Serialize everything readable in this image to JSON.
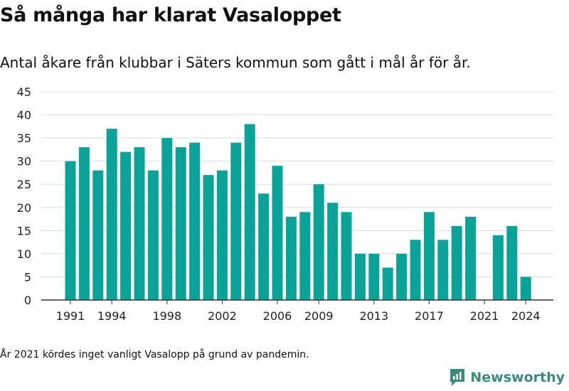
{
  "header": {
    "title": "Så många har klarat Vasaloppet",
    "subtitle": "Antal åkare från klubbar i Säters kommun som gått i mål år för år."
  },
  "footnote": "År 2021 kördes inget vanligt Vasalopp på grund av pandemin.",
  "brand": {
    "name": "Newsworthy",
    "icon": "newsworthy-logo-icon",
    "color": "#3a8a80"
  },
  "colors": {
    "bar": "#0aa39a",
    "grid": "#dddddd",
    "axis": "#333333"
  },
  "chart_data": {
    "type": "bar",
    "categories": [
      1991,
      1992,
      1993,
      1994,
      1995,
      1996,
      1997,
      1998,
      1999,
      2000,
      2001,
      2002,
      2003,
      2004,
      2005,
      2006,
      2007,
      2008,
      2009,
      2010,
      2011,
      2012,
      2013,
      2014,
      2015,
      2016,
      2017,
      2018,
      2019,
      2020,
      2021,
      2022,
      2023,
      2024
    ],
    "values": [
      30,
      33,
      28,
      37,
      32,
      33,
      28,
      35,
      33,
      34,
      27,
      28,
      34,
      38,
      23,
      29,
      18,
      19,
      25,
      21,
      19,
      10,
      10,
      7,
      10,
      13,
      19,
      13,
      16,
      18,
      null,
      14,
      16,
      5
    ],
    "x_tick_labels": [
      "1991",
      "1994",
      "1998",
      "2002",
      "2006",
      "2009",
      "2013",
      "2017",
      "2021",
      "2024"
    ],
    "ylim": [
      0,
      45
    ],
    "y_ticks": [
      0,
      5,
      10,
      15,
      20,
      25,
      30,
      35,
      40,
      45
    ],
    "xlabel": "",
    "ylabel": "",
    "grid": true
  }
}
